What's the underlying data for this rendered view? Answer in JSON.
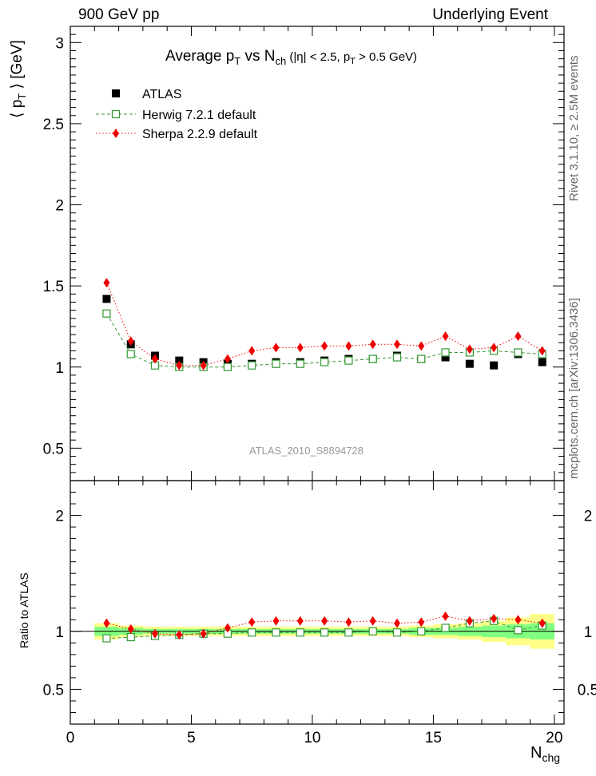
{
  "header": {
    "left": "900 GeV pp",
    "right": "Underlying Event"
  },
  "side_labels": {
    "rivet": "Rivet 3.1.10, ≥ 2.5M events",
    "mcplots": "mcplots.cern.ch [arXiv:1306.3436]"
  },
  "watermark": "ATLAS_2010_S8894728",
  "colors": {
    "atlas": "#000000",
    "herwig": "#339933",
    "sherpa": "#ee0000",
    "band_inner": "#80ff80",
    "band_outer": "#ffff88"
  },
  "chart_data": [
    {
      "type": "scatter",
      "panel": "main",
      "title_parts": {
        "main": "Average p",
        "pt_sub": "T",
        "vs": " vs N",
        "nch_sub": "ch",
        "cuts_a": " (|η| < 2.5, p",
        "cuts_sub": "T",
        "cuts_b": " > 0.5 GeV)"
      },
      "ylabel": "⟨ p_T ⟩ [GeV]",
      "xlim": [
        0,
        20.4
      ],
      "ylim": [
        0.3,
        3.1
      ],
      "yticks": [
        "0.5",
        "1",
        "1.5",
        "2",
        "2.5",
        "3"
      ],
      "legend_position": "top-left",
      "x": [
        1.5,
        2.5,
        3.5,
        4.5,
        5.5,
        6.5,
        7.5,
        8.5,
        9.5,
        10.5,
        11.5,
        12.5,
        13.5,
        14.5,
        15.5,
        16.5,
        17.5,
        18.5,
        19.5
      ],
      "series": [
        {
          "name": "ATLAS",
          "marker": "filled-square",
          "values": [
            1.42,
            1.14,
            1.07,
            1.04,
            1.03,
            1.02,
            1.02,
            1.03,
            1.03,
            1.04,
            1.05,
            1.05,
            1.07,
            1.05,
            1.06,
            1.02,
            1.01,
            1.08,
            1.03
          ]
        },
        {
          "name": "Herwig 7.2.1 default",
          "marker": "open-square",
          "line": "dashed",
          "values": [
            1.33,
            1.08,
            1.01,
            1.0,
            1.0,
            1.0,
            1.01,
            1.02,
            1.02,
            1.03,
            1.04,
            1.05,
            1.06,
            1.05,
            1.09,
            1.09,
            1.1,
            1.09,
            1.08
          ]
        },
        {
          "name": "Sherpa 2.2.9 default",
          "marker": "filled-diamond",
          "line": "dotted",
          "values": [
            1.52,
            1.16,
            1.05,
            1.01,
            1.01,
            1.05,
            1.1,
            1.12,
            1.12,
            1.13,
            1.13,
            1.14,
            1.14,
            1.13,
            1.19,
            1.11,
            1.12,
            1.19,
            1.1
          ]
        }
      ]
    },
    {
      "type": "scatter",
      "panel": "ratio",
      "ylabel": "Ratio to ATLAS",
      "xlabel": "N_chg",
      "xlim": [
        0,
        20.4
      ],
      "ylim": [
        0.2,
        2.3
      ],
      "xticks": [
        "0",
        "5",
        "10",
        "15",
        "20"
      ],
      "yticks": [
        "0.5",
        "1",
        "2"
      ],
      "x": [
        1.5,
        2.5,
        3.5,
        4.5,
        5.5,
        6.5,
        7.5,
        8.5,
        9.5,
        10.5,
        11.5,
        12.5,
        13.5,
        14.5,
        15.5,
        16.5,
        17.5,
        18.5,
        19.5
      ],
      "band_inner_halfwidth": [
        0.04,
        0.03,
        0.02,
        0.02,
        0.02,
        0.02,
        0.02,
        0.02,
        0.02,
        0.02,
        0.02,
        0.02,
        0.02,
        0.03,
        0.03,
        0.04,
        0.05,
        0.06,
        0.07
      ],
      "band_outer_halfwidth": [
        0.07,
        0.05,
        0.04,
        0.04,
        0.04,
        0.04,
        0.04,
        0.04,
        0.04,
        0.04,
        0.04,
        0.04,
        0.04,
        0.05,
        0.06,
        0.07,
        0.09,
        0.12,
        0.15
      ],
      "series": [
        {
          "name": "Herwig 7.2.1 default",
          "marker": "open-square",
          "line": "dashed",
          "values": [
            0.94,
            0.95,
            0.96,
            0.97,
            0.98,
            0.98,
            0.99,
            0.99,
            0.99,
            0.99,
            0.99,
            1.0,
            0.99,
            1.0,
            1.03,
            1.07,
            1.09,
            1.01,
            1.05
          ]
        },
        {
          "name": "Sherpa 2.2.9 default",
          "marker": "filled-diamond",
          "line": "dotted",
          "values": [
            1.07,
            1.02,
            0.98,
            0.97,
            0.98,
            1.03,
            1.08,
            1.09,
            1.09,
            1.09,
            1.08,
            1.09,
            1.07,
            1.08,
            1.13,
            1.09,
            1.11,
            1.1,
            1.07
          ]
        }
      ]
    }
  ]
}
